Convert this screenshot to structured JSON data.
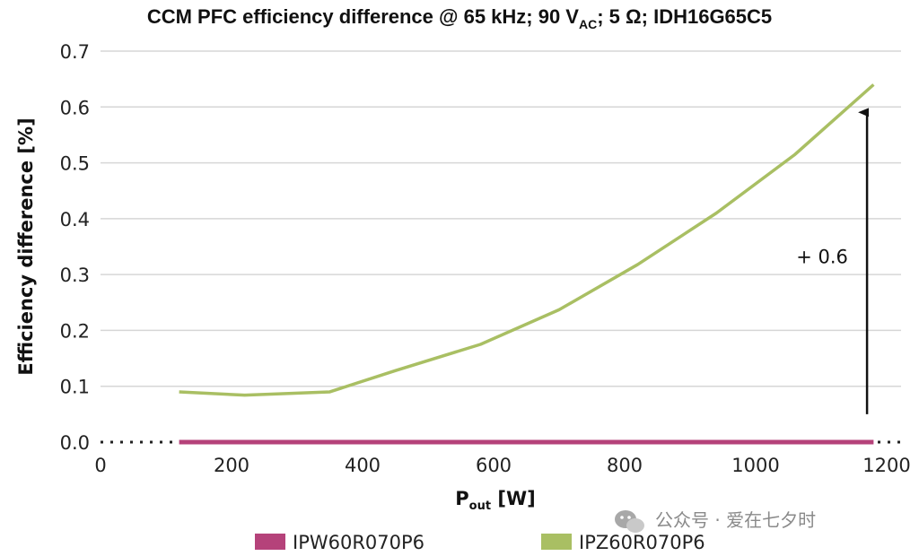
{
  "chart_data": {
    "type": "line",
    "title": "CCM PFC efficiency difference @ 65 kHz; 90 V",
    "title_sub": "AC",
    "title_rest": "; 5 Ω; IDH16G65C5",
    "xlabel": "P",
    "xlabel_sub": "out",
    "xlabel_rest": " [W]",
    "ylabel": "Efficiency difference [%]",
    "xlim": [
      0,
      1200
    ],
    "ylim": [
      0,
      0.7
    ],
    "x_ticks": [
      0,
      200,
      400,
      600,
      800,
      1000,
      1200
    ],
    "y_ticks": [
      0.7,
      0.6,
      0.5,
      0.4,
      0.3,
      0.2,
      0.1,
      0.0
    ],
    "y_tick_labels": [
      "0.7",
      "0.6",
      "0.5",
      "0.4",
      "0.3",
      "0.2",
      "0.1",
      "0.0"
    ],
    "grid": true,
    "legend_position": "bottom",
    "series": [
      {
        "name": "IPW60R070P6",
        "color": "#b5427a",
        "x": [
          120,
          1180
        ],
        "y": [
          0.0,
          0.0
        ]
      },
      {
        "name": "IPZ60R070P6",
        "color": "#a9bf63",
        "x": [
          120,
          220,
          350,
          450,
          580,
          700,
          820,
          940,
          1060,
          1180
        ],
        "y": [
          0.09,
          0.084,
          0.09,
          0.128,
          0.175,
          0.237,
          0.318,
          0.41,
          0.515,
          0.64
        ]
      }
    ],
    "annotation": {
      "text": "+ 0.6",
      "arrow_x": 1170,
      "arrow_from": 0.05,
      "arrow_to": 0.6
    }
  },
  "watermark": "公众号 · 爱在七夕时"
}
